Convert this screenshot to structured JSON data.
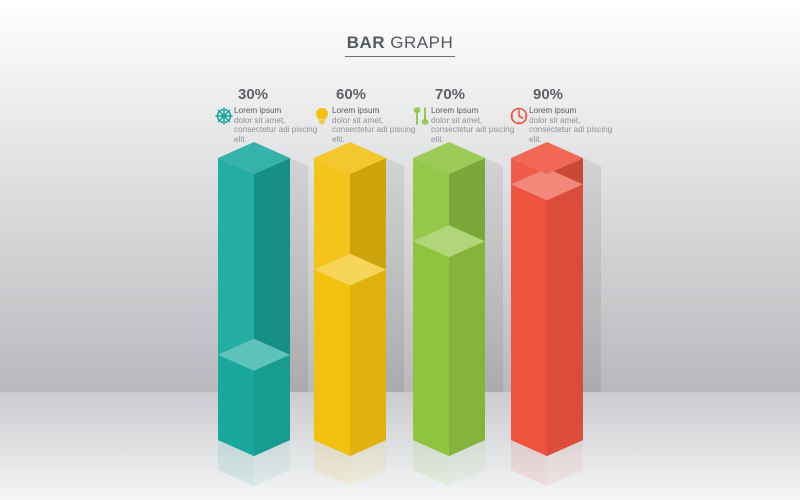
{
  "chart_data": {
    "type": "bar",
    "title_bold": "BAR",
    "title_light": "GRAPH",
    "categories": [
      "30%",
      "60%",
      "70%",
      "90%"
    ],
    "values": [
      30,
      60,
      70,
      90
    ],
    "ylim": [
      0,
      100
    ],
    "colors": [
      "#1aa89e",
      "#f2c10f",
      "#8fc441",
      "#ef5340"
    ],
    "icons": [
      "ship-wheel-icon",
      "light-bulb-icon",
      "wrench-icon",
      "clock-icon"
    ],
    "descriptions": [
      {
        "head": "Lorem ipsum",
        "body": "dolor sit amet, consectetur adi piscing elit."
      },
      {
        "head": "Lorem ipsum",
        "body": "dolor sit amet, consectetur adi piscing elit."
      },
      {
        "head": "Lorem ipsum",
        "body": "dolor sit amet, consectetur adi piscing elit."
      },
      {
        "head": "Lorem ipsum",
        "body": "dolor sit amet, consectetur adi piscing elit."
      }
    ]
  }
}
